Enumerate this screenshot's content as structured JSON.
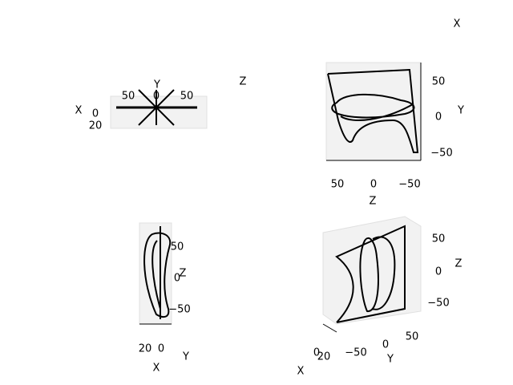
{
  "subplots": [
    {
      "axis_labels": [
        "X",
        "Y",
        "Z"
      ],
      "tick_labels": [
        "50",
        "0",
        "50",
        "0",
        "20"
      ]
    },
    {
      "axis_labels": [
        "X",
        "Y",
        "Z"
      ],
      "tick_labels": [
        "50",
        "0",
        "−50",
        "50",
        "0",
        "−50"
      ]
    },
    {
      "axis_labels": [
        "Z",
        "Y",
        "X"
      ],
      "tick_labels": [
        "50",
        "0",
        "−50",
        "20",
        "0"
      ]
    },
    {
      "axis_labels": [
        "Z",
        "Y",
        "X"
      ],
      "tick_labels": [
        "50",
        "0",
        "−50",
        "0",
        "20",
        "−50",
        "0",
        "50"
      ]
    }
  ]
}
